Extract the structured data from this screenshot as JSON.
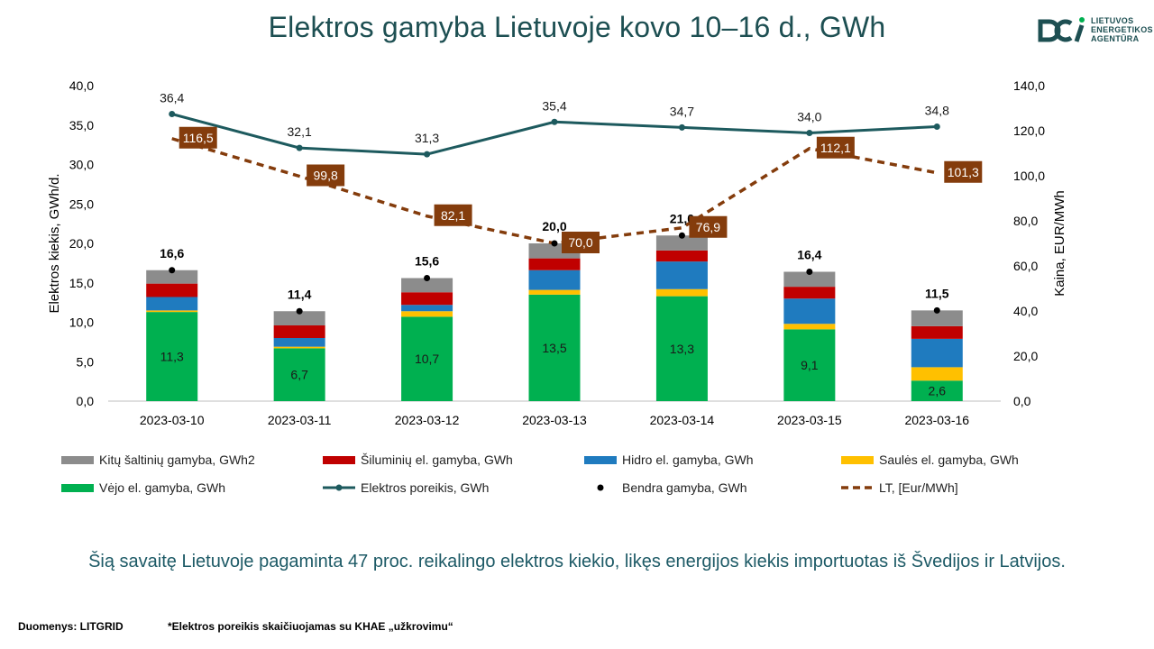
{
  "title": "Elektros gamyba Lietuvoje kovo 10–16 d., GWh",
  "logo": {
    "lines": [
      "LIETUVOS",
      "ENERGETIKOS",
      "AGENTŪRA"
    ],
    "icon": "lea-logo-icon"
  },
  "colors": {
    "title": "#1d4f52",
    "kitu": "#8c8c8c",
    "siluminiu": "#c00000",
    "hidro": "#1f7bbf",
    "saules": "#ffc000",
    "vejo": "#00b050",
    "poreikis": "#1d5a5e",
    "bendra": "#000000",
    "lt": "#843c0c"
  },
  "chart_data": {
    "type": "bar",
    "stacked": true,
    "categories": [
      "2023-03-10",
      "2023-03-11",
      "2023-03-12",
      "2023-03-13",
      "2023-03-14",
      "2023-03-15",
      "2023-03-16"
    ],
    "ylabel_left": "Elektros kiekis, GWh/d.",
    "ylabel_right": "Kaina, EUR/MWh",
    "ylim_left": [
      0,
      40
    ],
    "ylim_right": [
      0,
      140
    ],
    "yticks_left": [
      "0,0",
      "5,0",
      "10,0",
      "15,0",
      "20,0",
      "25,0",
      "30,0",
      "35,0",
      "40,0"
    ],
    "yticks_right": [
      "0,0",
      "20,0",
      "40,0",
      "60,0",
      "80,0",
      "100,0",
      "120,0",
      "140,0"
    ],
    "series": [
      {
        "name": "Vėjo el. gamyba, GWh",
        "key": "vejo",
        "kind": "bar",
        "values": [
          11.3,
          6.7,
          10.7,
          13.5,
          13.3,
          9.1,
          2.6
        ],
        "labels": [
          "11,3",
          "6,7",
          "10,7",
          "13,5",
          "13,3",
          "9,1",
          "2,6"
        ]
      },
      {
        "name": "Saulės el. gamyba, GWh",
        "key": "saules",
        "kind": "bar",
        "values": [
          0.2,
          0.2,
          0.7,
          0.6,
          0.9,
          0.7,
          1.7
        ]
      },
      {
        "name": "Hidro el. gamyba, GWh",
        "key": "hidro",
        "kind": "bar",
        "values": [
          1.7,
          1.1,
          0.8,
          2.5,
          3.5,
          3.2,
          3.6
        ]
      },
      {
        "name": "Šiluminių el. gamyba, GWh",
        "key": "siluminiu",
        "kind": "bar",
        "values": [
          1.7,
          1.6,
          1.6,
          1.5,
          1.4,
          1.5,
          1.6
        ]
      },
      {
        "name": "Kitų šaltinių gamyba, GWh2",
        "key": "kitu",
        "kind": "bar",
        "values": [
          1.7,
          1.8,
          1.8,
          1.9,
          1.9,
          1.9,
          2.0
        ]
      },
      {
        "name": "Elektros poreikis, GWh",
        "key": "poreikis",
        "kind": "line",
        "values": [
          36.4,
          32.1,
          31.3,
          35.4,
          34.7,
          34.0,
          34.8
        ],
        "labels": [
          "36,4",
          "32,1",
          "31,3",
          "35,4",
          "34,7",
          "34,0",
          "34,8"
        ]
      },
      {
        "name": "Bendra gamyba, GWh",
        "key": "bendra",
        "kind": "point",
        "values": [
          16.6,
          11.4,
          15.6,
          20.0,
          21.0,
          16.4,
          11.5
        ],
        "labels": [
          "16,6",
          "11,4",
          "15,6",
          "20,0",
          "21,0",
          "16,4",
          "11,5"
        ]
      },
      {
        "name": "LT, [Eur/MWh]",
        "key": "lt",
        "kind": "dashed-line",
        "axis": "right",
        "values": [
          116.5,
          99.8,
          82.1,
          70.0,
          76.9,
          112.1,
          101.3
        ],
        "labels": [
          "116,5",
          "99,8",
          "82,1",
          "70,0",
          "76,9",
          "112,1",
          "101,3"
        ]
      }
    ],
    "legend": [
      {
        "label": "Kitų šaltinių gamyba, GWh2",
        "key": "kitu",
        "marker": "bar"
      },
      {
        "label": "Šiluminių el. gamyba, GWh",
        "key": "siluminiu",
        "marker": "bar"
      },
      {
        "label": "Hidro el. gamyba, GWh",
        "key": "hidro",
        "marker": "bar"
      },
      {
        "label": "Saulės el. gamyba, GWh",
        "key": "saules",
        "marker": "bar"
      },
      {
        "label": "Vėjo el. gamyba, GWh",
        "key": "vejo",
        "marker": "bar"
      },
      {
        "label": "Elektros poreikis, GWh",
        "key": "poreikis",
        "marker": "line"
      },
      {
        "label": "Bendra gamyba, GWh",
        "key": "bendra",
        "marker": "point"
      },
      {
        "label": "LT, [Eur/MWh]",
        "key": "lt",
        "marker": "dashed"
      }
    ],
    "legend_position": "bottom",
    "grid": false
  },
  "summary": "Šią savaitę Lietuvoje pagaminta 47 proc. reikalingo elektros kiekio, likęs energijos kiekis importuotas iš Švedijos ir Latvijos.",
  "footer": {
    "source": "Duomenys: LITGRID",
    "note": "*Elektros poreikis skaičiuojamas su KHAE „užkrovimu“"
  }
}
